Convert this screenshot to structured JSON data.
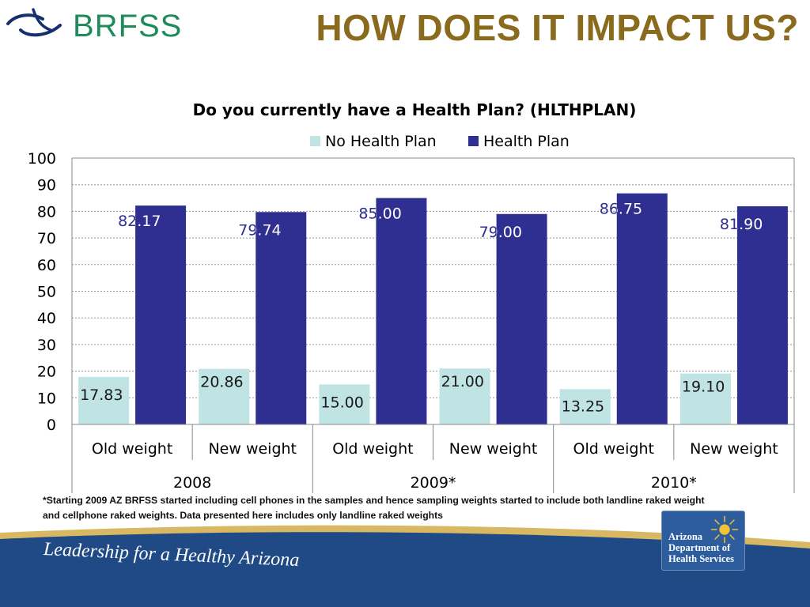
{
  "header": {
    "logo_text": "BRFSS",
    "slide_title": "HOW DOES IT IMPACT US?"
  },
  "colors": {
    "no_plan": "#bfe4e3",
    "health_plan": "#2f2f91",
    "title_gold": "#8a6a1c",
    "logo_green": "#1f8a5a",
    "logo_navy": "#16306e",
    "banner_blue": "#1f4a86",
    "banner_gold": "#d8b862"
  },
  "chart_data": {
    "type": "bar",
    "title": "Do you currently have a Health Plan? (HLTHPLAN)",
    "categories": [
      "Old weight",
      "New weight",
      "Old weight",
      "New weight",
      "Old weight",
      "New weight"
    ],
    "groups": [
      {
        "label": "2008",
        "span": [
          0,
          1
        ]
      },
      {
        "label": "2009*",
        "span": [
          2,
          3
        ]
      },
      {
        "label": "2010*",
        "span": [
          4,
          5
        ]
      }
    ],
    "series": [
      {
        "name": "No Health Plan",
        "values": [
          17.83,
          20.86,
          15.0,
          21.0,
          13.25,
          19.1
        ],
        "labels": [
          "17.83",
          "20.86",
          "15.00",
          "21.00",
          "13.25",
          "19.10"
        ]
      },
      {
        "name": "Health Plan",
        "values": [
          82.17,
          79.74,
          85.0,
          79.0,
          86.75,
          81.9
        ],
        "labels": [
          "82.17",
          "79.74",
          "85.00",
          "79.00",
          "86.75",
          "81.90"
        ]
      }
    ],
    "ylim": [
      0,
      100
    ],
    "yticks": [
      "0",
      "10",
      "20",
      "30",
      "40",
      "50",
      "60",
      "70",
      "80",
      "90",
      "100"
    ],
    "grid": true,
    "legend": "top-center"
  },
  "footnote": {
    "line1": "*Starting 2009 AZ BRFSS started including cell phones in the samples and hence sampling weights started to include both landline raked weight",
    "line2": "and cellphone raked weights. Data presented here includes only landline raked weights"
  },
  "banner": {
    "slogan": "Leadership for a Healthy Arizona",
    "agency_lines": [
      "Arizona",
      "Department of",
      "Health Services"
    ]
  }
}
